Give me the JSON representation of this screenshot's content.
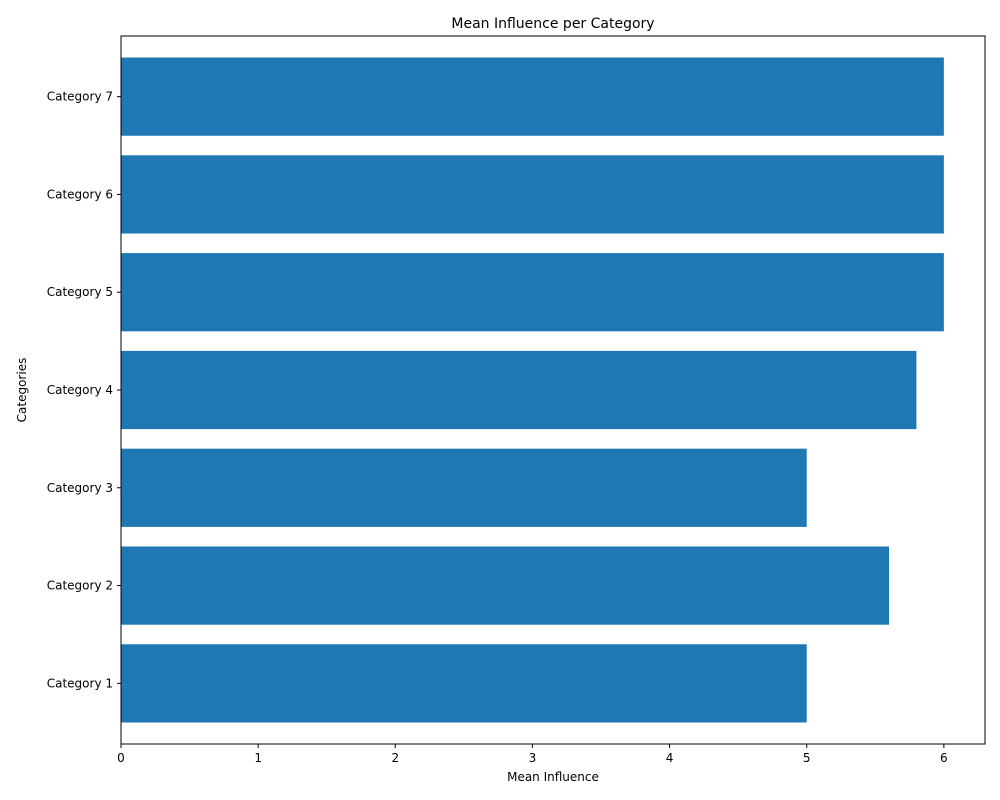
{
  "chart_data": {
    "type": "bar",
    "orientation": "horizontal",
    "title": "Mean Influence per Category",
    "xlabel": "Mean Influence",
    "ylabel": "Categories",
    "categories": [
      "Category 1",
      "Category 2",
      "Category 3",
      "Category 4",
      "Category 5",
      "Category 6",
      "Category 7"
    ],
    "values": [
      5.0,
      5.6,
      5.0,
      5.8,
      6.0,
      6.0,
      6.0
    ],
    "xlim": [
      0,
      6.3
    ],
    "xticks": [
      0,
      1,
      2,
      3,
      4,
      5,
      6
    ],
    "grid": false,
    "bar_color": "#1f77b4"
  }
}
